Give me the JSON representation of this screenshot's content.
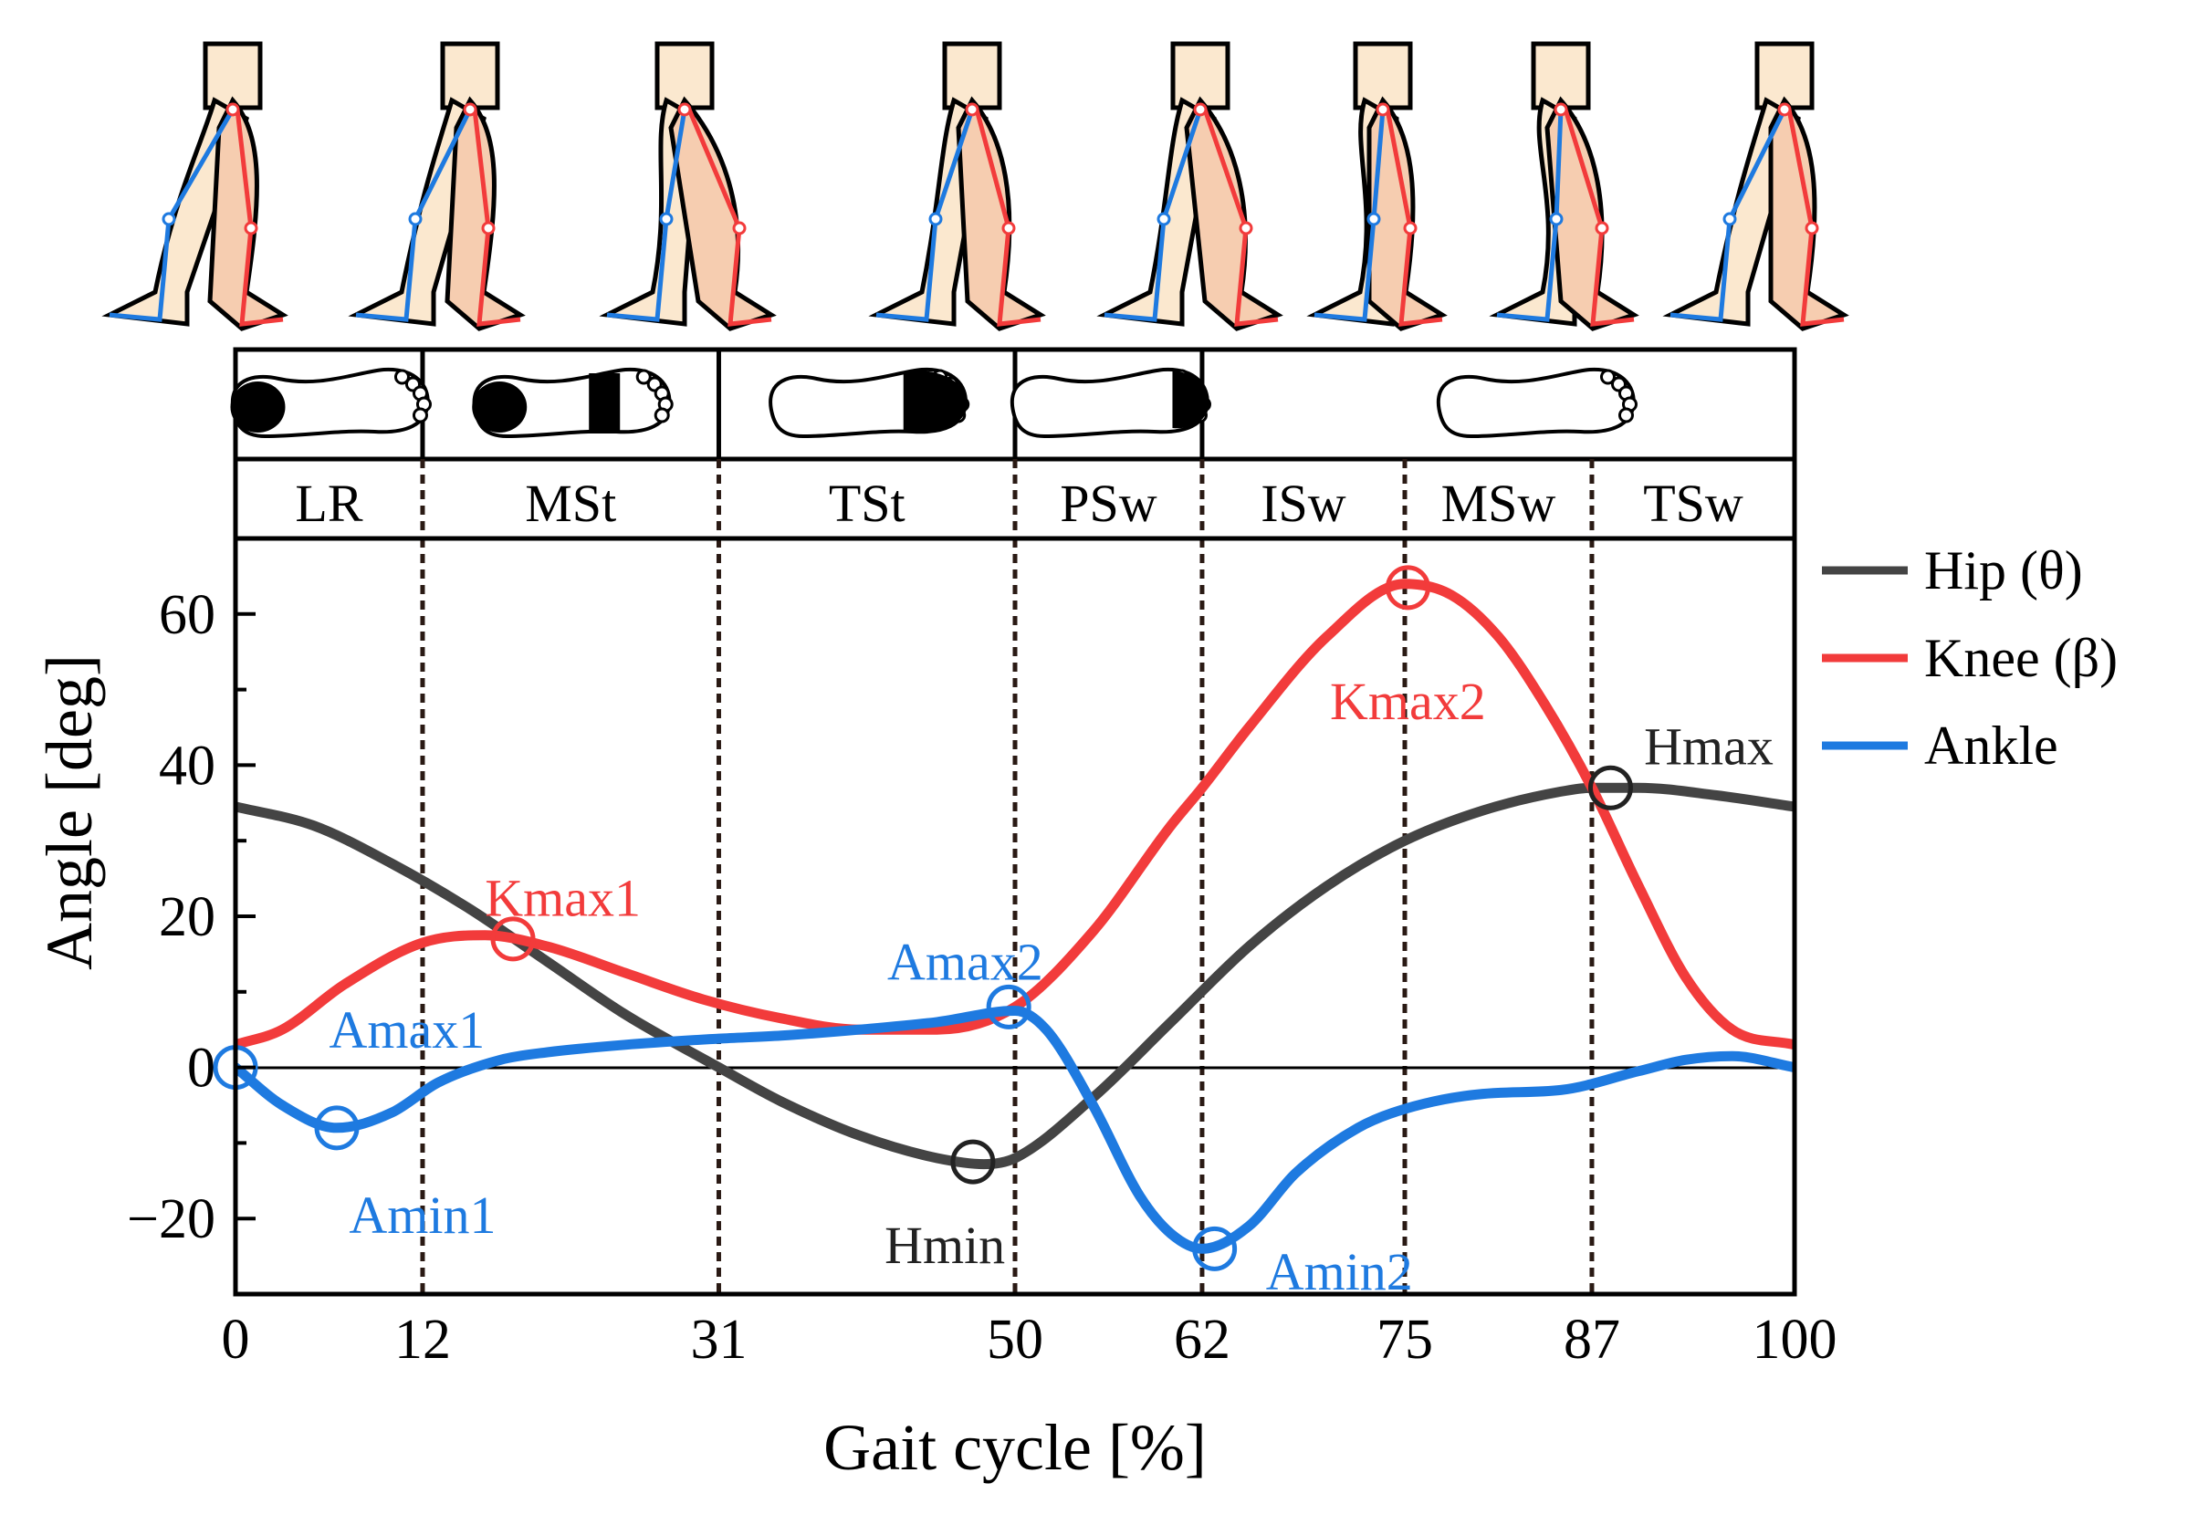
{
  "chart_data": {
    "type": "line",
    "xlabel": "Gait cycle [%]",
    "ylabel": "Angle [deg]",
    "xlim": [
      0,
      100
    ],
    "ylim": [
      -30,
      70
    ],
    "x_ticks": [
      0,
      12,
      31,
      50,
      62,
      75,
      87,
      100
    ],
    "y_ticks": [
      -20,
      0,
      20,
      40,
      60
    ],
    "y_tick_labels": [
      "−20",
      "0",
      "20",
      "40",
      "60"
    ],
    "phase_boundaries": [
      12,
      31,
      50,
      62,
      75,
      87
    ],
    "phases": [
      {
        "label": "LR",
        "start": 0,
        "end": 12
      },
      {
        "label": "MSt",
        "start": 12,
        "end": 31
      },
      {
        "label": "TSt",
        "start": 31,
        "end": 50
      },
      {
        "label": "PSw",
        "start": 50,
        "end": 62
      },
      {
        "label": "ISw",
        "start": 62,
        "end": 75
      },
      {
        "label": "MSw",
        "start": 75,
        "end": 87
      },
      {
        "label": "TSw",
        "start": 87,
        "end": 100
      }
    ],
    "foot_contacts": [
      "heel",
      "flat",
      "forefoot",
      "toe",
      "swing"
    ],
    "legend_position": "right",
    "series": [
      {
        "name": "Hip (θ)",
        "color": "#444444",
        "x": [
          0,
          5,
          10,
          15,
          20,
          25,
          31,
          35,
          40,
          45,
          48,
          50,
          55,
          60,
          65,
          70,
          75,
          80,
          85,
          87,
          90,
          95,
          100
        ],
        "y": [
          34.5,
          32,
          27,
          21,
          14,
          7,
          0,
          -4.5,
          -9,
          -12,
          -12.8,
          -12,
          -4,
          6,
          16,
          24,
          30,
          34,
          36.5,
          37,
          37,
          36,
          34.5
        ]
      },
      {
        "name": "Knee (β)",
        "color": "#f23b3b",
        "x": [
          0,
          3,
          7,
          12,
          16,
          20,
          25,
          30,
          35,
          40,
          45,
          50,
          55,
          60,
          62,
          65,
          70,
          75,
          78,
          81,
          84,
          87,
          90,
          93,
          96,
          100
        ],
        "y": [
          3,
          5,
          11,
          16.5,
          17.5,
          16,
          12.5,
          9,
          6.5,
          5,
          5,
          8,
          18,
          32,
          37,
          45,
          57,
          64,
          62.5,
          57,
          48,
          37,
          24,
          12,
          5,
          3
        ]
      },
      {
        "name": "Ankle",
        "color": "#1e7ae0",
        "x": [
          0,
          3,
          6.5,
          10,
          13,
          17,
          20,
          25,
          31,
          35,
          40,
          45,
          50,
          52,
          55,
          58,
          60,
          62,
          65,
          68,
          72,
          75,
          80,
          85,
          90,
          93,
          96,
          100
        ],
        "y": [
          0,
          -5,
          -8,
          -6,
          -2,
          1,
          2,
          3,
          3.8,
          4.2,
          5,
          6,
          7.5,
          5,
          -5,
          -17,
          -22,
          -24,
          -21,
          -14,
          -8,
          -5.5,
          -3.5,
          -3,
          -0.5,
          1,
          1.5,
          0
        ]
      }
    ],
    "annotations": [
      {
        "label": "Amax1",
        "x": 0,
        "y": 0,
        "series": "Ankle",
        "color": "#1e7ae0",
        "label_x": 11,
        "label_y": 5,
        "anchor": "middle"
      },
      {
        "label": "Amin1",
        "x": 6.5,
        "y": -8,
        "series": "Ankle",
        "color": "#1e7ae0",
        "label_x": 12,
        "label_y": -19.5,
        "anchor": "middle"
      },
      {
        "label": "Kmax1",
        "x": 17.8,
        "y": 17,
        "series": "Knee (β)",
        "color": "#f23b3b",
        "label_x": 21,
        "label_y": 22.5,
        "anchor": "middle"
      },
      {
        "label": "Amax2",
        "x": 49.6,
        "y": 8,
        "series": "Ankle",
        "color": "#1e7ae0",
        "label_x": 46.8,
        "label_y": 14,
        "anchor": "middle"
      },
      {
        "label": "Hmin",
        "x": 47.3,
        "y": -12.5,
        "series": "Hip (θ)",
        "color": "#222222",
        "label_x": 45.5,
        "label_y": -23.5,
        "anchor": "middle"
      },
      {
        "label": "Amin2",
        "x": 62.8,
        "y": -24,
        "series": "Ankle",
        "color": "#1e7ae0",
        "label_x": 70.8,
        "label_y": -27,
        "anchor": "middle"
      },
      {
        "label": "Kmax2",
        "x": 75.2,
        "y": 63.5,
        "series": "Knee (β)",
        "color": "#f23b3b",
        "label_x": 75.2,
        "label_y": 48.5,
        "anchor": "middle"
      },
      {
        "label": "Hmax",
        "x": 88.2,
        "y": 37,
        "series": "Hip (θ)",
        "color": "#222222",
        "label_x": 94.5,
        "label_y": 42.5,
        "anchor": "middle"
      }
    ]
  }
}
